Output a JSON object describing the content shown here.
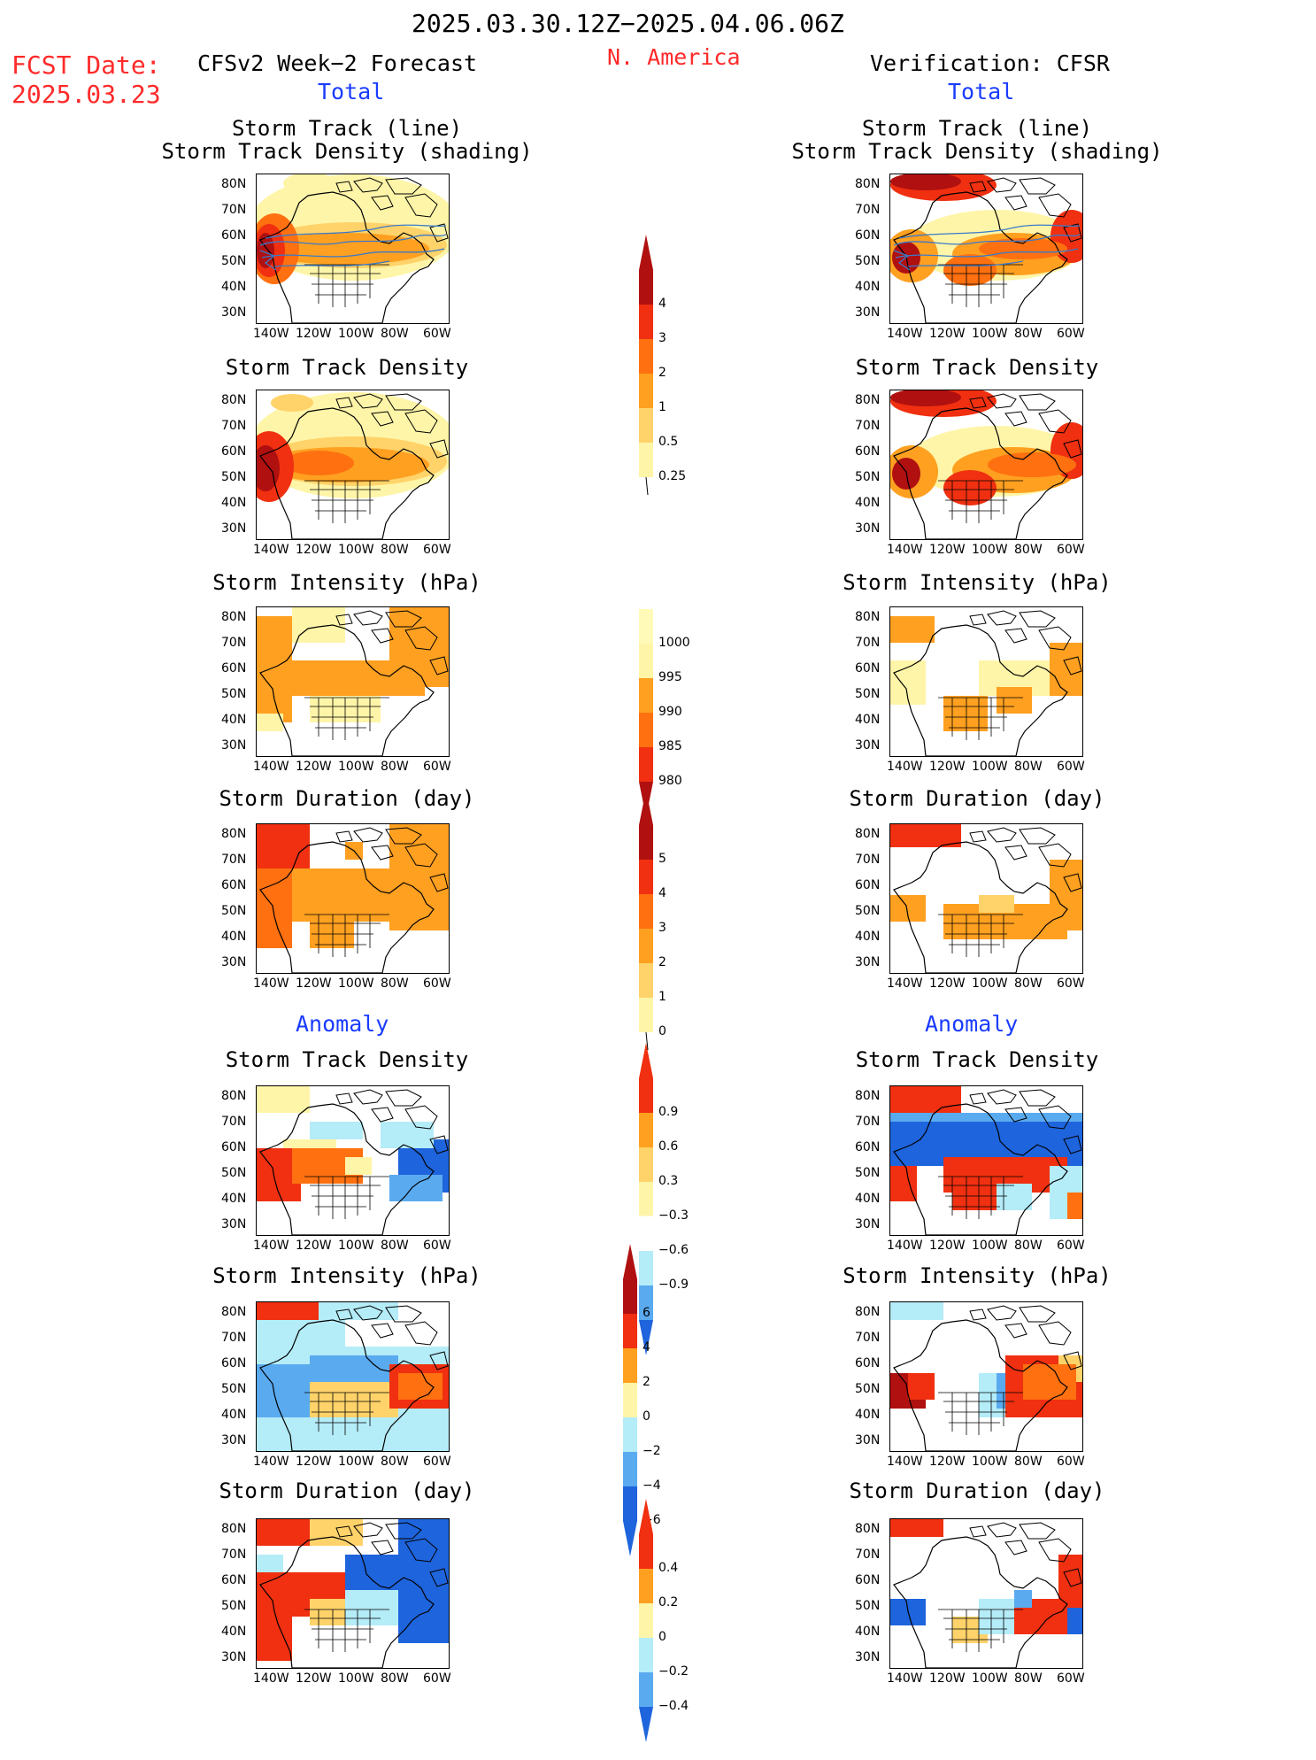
{
  "header": {
    "period": "2025.03.30.12Z−2025.04.06.06Z",
    "fcst_label": "FCST Date:",
    "fcst_date": "2025.03.23",
    "forecast_title": "CFSv2 Week−2 Forecast",
    "region": "N. America",
    "verification_title": "Verification: CFSR"
  },
  "sections": {
    "total": "Total",
    "anomaly": "Anomaly"
  },
  "panel_titles": {
    "track_line": "Storm Track (line)",
    "track_shading": "Storm Track Density (shading)",
    "density": "Storm Track Density",
    "intensity": "Storm Intensity (hPa)",
    "duration": "Storm Duration (day)"
  },
  "axes": {
    "lat": [
      "80N",
      "70N",
      "60N",
      "50N",
      "40N",
      "30N"
    ],
    "lon": [
      "140W",
      "120W",
      "100W",
      "80W",
      "60W"
    ]
  },
  "colorbars": {
    "density_total": [
      "4",
      "3",
      "2",
      "1",
      "0.5",
      "0.25"
    ],
    "intensity_total": [
      "1000",
      "995",
      "990",
      "985",
      "980"
    ],
    "duration_total": [
      "5",
      "4",
      "3",
      "2",
      "1",
      "0"
    ],
    "density_anom": [
      "0.9",
      "0.6",
      "0.3",
      "−0.3",
      "−0.6",
      "−0.9"
    ],
    "intensity_anom": [
      "6",
      "4",
      "2",
      "0",
      "−2",
      "−4",
      "−6"
    ],
    "duration_anom": [
      "0.4",
      "0.2",
      "0",
      "−0.2",
      "−0.4"
    ]
  },
  "colors": {
    "pale": "#fff5a8",
    "light_orange": "#ffd36a",
    "orange": "#ffa020",
    "dark_orange": "#ff7010",
    "red": "#f03010",
    "dark_red": "#b01010",
    "light_blue": "#b4ecf8",
    "mid_blue": "#5aaaf0",
    "blue": "#1e64dc",
    "track_line": "#3a7ac8"
  }
}
